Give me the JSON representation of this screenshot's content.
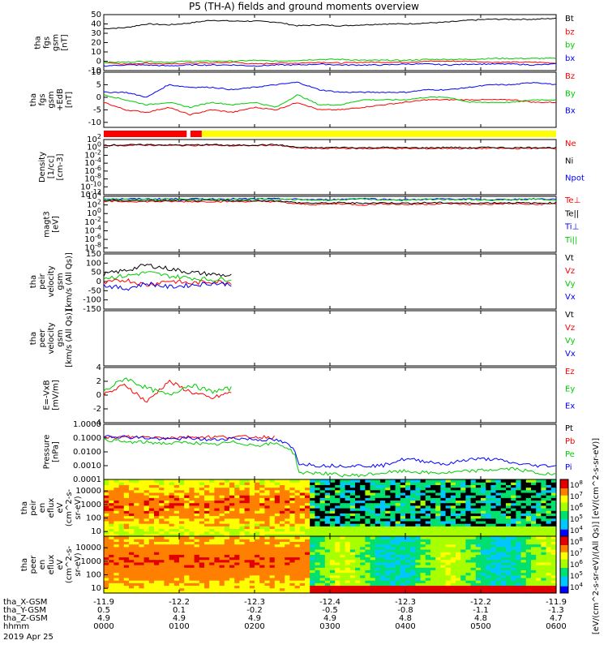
{
  "title": "P5 (TH-A) fields and ground moments overview",
  "date_label": "2019 Apr 25",
  "chart_data": [
    {
      "type": "line",
      "ylabel": [
        "tha",
        "fgs",
        "gsm",
        "[nT]"
      ],
      "yticks": [
        -10,
        0,
        10,
        20,
        30,
        40,
        50
      ],
      "ylim": [
        -10,
        50
      ],
      "series": [
        {
          "name": "Bt",
          "color": "#000000",
          "values": [
            35,
            36,
            40,
            39,
            41,
            44,
            43,
            43,
            42,
            38,
            39,
            38,
            39,
            40,
            40,
            41,
            42,
            44,
            45,
            45,
            45,
            46
          ]
        },
        {
          "name": "bz",
          "color": "#ff0000",
          "values": [
            -1,
            -3,
            -2,
            -3,
            -2,
            -2,
            -1,
            -3,
            -2,
            -2,
            -1,
            -2,
            -1,
            -1,
            -1,
            0,
            0,
            0,
            -1,
            -1,
            -1,
            -2
          ]
        },
        {
          "name": "by",
          "color": "#00cc00",
          "values": [
            -1,
            -1,
            0,
            -1,
            0,
            0,
            0,
            1,
            0,
            1,
            2,
            2,
            1,
            1,
            1,
            2,
            2,
            2,
            3,
            3,
            3,
            3
          ]
        },
        {
          "name": "bx",
          "color": "#0000ff",
          "values": [
            -5,
            -4,
            -4,
            -5,
            -4,
            -4,
            -4,
            -5,
            -4,
            -4,
            -3,
            -4,
            -4,
            -4,
            -3,
            -3,
            -4,
            -3,
            -3,
            -3,
            -4,
            -3
          ]
        }
      ]
    },
    {
      "type": "line",
      "ylabel": [
        "tha",
        "fgs",
        "gsm",
        "+EdB",
        "[nT]"
      ],
      "yticks": [
        -10,
        -5,
        0,
        5,
        10
      ],
      "ylim": [
        -12,
        10
      ],
      "series": [
        {
          "name": "Bz",
          "color": "#ff0000",
          "values": [
            -2,
            -5,
            -6,
            -4,
            -7,
            -5,
            -6,
            -4,
            -5,
            -2,
            -5,
            -5,
            -4,
            -3,
            -2,
            -1,
            -1,
            -1,
            -1,
            -1,
            -2,
            -2
          ]
        },
        {
          "name": "By",
          "color": "#00cc00",
          "values": [
            1,
            -1,
            -3,
            -2,
            -4,
            -2,
            -3,
            -2,
            -4,
            1,
            -3,
            -3,
            -1,
            -1,
            -1,
            0,
            0,
            -2,
            -2,
            -2,
            -1,
            -1
          ]
        },
        {
          "name": "Bx",
          "color": "#0000ff",
          "values": [
            2,
            2,
            0,
            5,
            4,
            4,
            3,
            4,
            5,
            6,
            3,
            2,
            2,
            2,
            2,
            3,
            3,
            4,
            5,
            5,
            6,
            5
          ]
        }
      ]
    },
    {
      "type": "bar",
      "status_bar": [
        {
          "from": 0.0,
          "to": 1.1,
          "color": "#ff0000"
        },
        {
          "from": 1.15,
          "to": 1.3,
          "color": "#ff0000"
        },
        {
          "from": 1.3,
          "to": 6.0,
          "color": "#ffff00"
        }
      ]
    },
    {
      "type": "line",
      "ylog": true,
      "ylabel": [
        "Density",
        "[1/cc]",
        "[cm-3]"
      ],
      "yticks": [
        "10^-12",
        "10^-10",
        "10^-8",
        "10^-6",
        "10^-4",
        "10^-2",
        "10^0",
        "10^2"
      ],
      "ylim": [
        -12,
        2
      ],
      "series": [
        {
          "name": "Ne",
          "color": "#ff0000",
          "values": [
            0.5,
            0.5,
            0.6,
            0.5,
            0.5,
            0.6,
            0.4,
            0.5,
            0.6,
            -0.2,
            -0.3,
            -0.2,
            -0.3,
            -0.2,
            -0.3,
            -0.3,
            -0.2,
            -0.3,
            -0.2,
            -0.3,
            -0.2,
            -0.3
          ]
        },
        {
          "name": "Ni",
          "color": "#000000",
          "values": [
            0.6,
            0.6,
            0.7,
            0.6,
            0.6,
            0.7,
            0.5,
            0.6,
            0.7,
            0.0,
            -0.1,
            0.0,
            -0.1,
            0.0,
            -0.1,
            -0.1,
            0.0,
            -0.1,
            0.0,
            -0.1,
            0.0,
            -0.1
          ]
        },
        {
          "name": "Npot",
          "color": "#0000ff",
          "values": []
        }
      ]
    },
    {
      "type": "line",
      "ylog": true,
      "ylabel": [
        "magt3",
        "[eV]"
      ],
      "yticks": [
        "10^-8",
        "10^-6",
        "10^-4",
        "10^-2",
        "10^0",
        "10^2",
        "10^4"
      ],
      "ylim": [
        -9,
        4
      ],
      "series": [
        {
          "name": "Te⊥",
          "color": "#ff0000",
          "values": [
            2.8,
            2.8,
            2.8,
            2.8,
            2.8,
            2.8,
            2.8,
            2.8,
            2.8,
            2.2,
            2.1,
            2.3,
            2.0,
            2.3,
            2.1,
            2.2,
            2.3,
            2.1,
            2.2,
            2.3,
            2.1,
            2.3
          ]
        },
        {
          "name": "Te||",
          "color": "#000000",
          "values": [
            3.0,
            3.0,
            3.0,
            3.0,
            3.0,
            3.0,
            3.0,
            3.0,
            3.0,
            2.5,
            2.4,
            2.5,
            2.4,
            2.5,
            2.4,
            2.5,
            2.5,
            2.4,
            2.5,
            2.5,
            2.4,
            2.5
          ]
        },
        {
          "name": "Ti⊥",
          "color": "#0000ff",
          "values": [
            3.4,
            3.4,
            3.4,
            3.4,
            3.4,
            3.4,
            3.4,
            3.4,
            3.4,
            3.3,
            3.2,
            3.3,
            3.5,
            3.3,
            3.2,
            3.3,
            3.4,
            3.3,
            3.2,
            3.3,
            3.4,
            3.3
          ]
        },
        {
          "name": "Ti||",
          "color": "#00cc00",
          "values": [
            3.3,
            3.3,
            3.3,
            3.3,
            3.3,
            3.3,
            3.3,
            3.3,
            3.3,
            3.2,
            3.1,
            3.2,
            3.4,
            3.2,
            3.1,
            3.2,
            3.3,
            3.2,
            3.1,
            3.2,
            3.3,
            3.2
          ]
        }
      ]
    },
    {
      "type": "line",
      "ylabel": [
        "tha",
        "peir",
        "velocity",
        "gsm",
        "[km/s (All Qs)]"
      ],
      "yticks": [
        -150,
        -100,
        -50,
        0,
        50,
        100,
        150
      ],
      "ylim": [
        -150,
        150
      ],
      "series": [
        {
          "name": "Vt",
          "color": "#000000",
          "values": [
            40,
            60,
            90,
            70,
            50,
            40,
            30,
            null,
            null,
            null,
            null,
            null,
            null,
            null,
            null,
            null,
            null,
            null,
            null,
            null,
            null,
            null
          ]
        },
        {
          "name": "Vz",
          "color": "#ff0000",
          "values": [
            -10,
            10,
            -20,
            5,
            -10,
            0,
            -5,
            null,
            null,
            null,
            null,
            null,
            null,
            null,
            null,
            null,
            null,
            null,
            null,
            null,
            null,
            null
          ]
        },
        {
          "name": "Vy",
          "color": "#00cc00",
          "values": [
            20,
            30,
            50,
            30,
            20,
            10,
            15,
            null,
            null,
            null,
            null,
            null,
            null,
            null,
            null,
            null,
            null,
            null,
            null,
            null,
            null,
            null
          ]
        },
        {
          "name": "Vx",
          "color": "#0000ff",
          "values": [
            -20,
            -40,
            -10,
            -30,
            -20,
            -10,
            -15,
            null,
            null,
            null,
            null,
            null,
            null,
            null,
            null,
            null,
            null,
            null,
            null,
            null,
            null,
            null
          ]
        }
      ]
    },
    {
      "type": "line",
      "ylabel": [
        "tha",
        "peer",
        "velocity",
        "gsm",
        "[km/s (All Qs)]"
      ],
      "yticks": [],
      "ylim": [
        -150,
        150
      ],
      "series": [
        {
          "name": "Vt",
          "color": "#000000",
          "values": []
        },
        {
          "name": "Vz",
          "color": "#ff0000",
          "values": []
        },
        {
          "name": "Vy",
          "color": "#00cc00",
          "values": []
        },
        {
          "name": "Vx",
          "color": "#0000ff",
          "values": []
        }
      ]
    },
    {
      "type": "line",
      "ylabel": [
        "E=-VxB",
        "[mV/m]"
      ],
      "yticks": [
        -4,
        -2,
        0,
        2,
        4
      ],
      "ylim": [
        -4,
        4
      ],
      "series": [
        {
          "name": "Ez",
          "color": "#ff0000",
          "values": [
            0,
            1.5,
            -1,
            2,
            0.5,
            -0.5,
            0.5,
            null,
            null,
            null,
            null,
            null,
            null,
            null,
            null,
            null,
            null,
            null,
            null,
            null,
            null,
            null
          ]
        },
        {
          "name": "Ey",
          "color": "#00cc00",
          "values": [
            0.5,
            2.5,
            1,
            0,
            1.5,
            0.5,
            1,
            null,
            null,
            null,
            null,
            null,
            null,
            null,
            null,
            null,
            null,
            null,
            null,
            null,
            null,
            null
          ]
        },
        {
          "name": "Ex",
          "color": "#0000ff",
          "values": []
        }
      ]
    },
    {
      "type": "line",
      "ylog": true,
      "ylabel": [
        "Pressure",
        "[nPa]"
      ],
      "yticks": [
        "0.0001",
        "0.0010",
        "0.0100",
        "0.1000",
        "1.0000"
      ],
      "ylim": [
        -4,
        0
      ],
      "series": [
        {
          "name": "Pt",
          "color": "#000000",
          "values": []
        },
        {
          "name": "Pb",
          "color": "#ff0000",
          "values": [
            0.1,
            0.12,
            0.12,
            0.11,
            0.12,
            0.12,
            0.12,
            0.12,
            0.12,
            null,
            null,
            null,
            null,
            null,
            null,
            null,
            null,
            null,
            null,
            null,
            null,
            null
          ]
        },
        {
          "name": "Pe",
          "color": "#00cc00",
          "values": [
            0.08,
            0.05,
            0.05,
            0.04,
            0.05,
            0.03,
            0.05,
            0.03,
            0.04,
            0.0003,
            0.0003,
            0.0002,
            0.0002,
            0.0003,
            0.0004,
            0.0003,
            0.0003,
            0.0004,
            0.0005,
            0.0006,
            0.0003,
            0.0002
          ]
        },
        {
          "name": "Pi",
          "color": "#0000ff",
          "values": [
            0.15,
            0.12,
            0.1,
            0.08,
            0.1,
            0.07,
            0.1,
            0.08,
            0.07,
            0.0015,
            0.001,
            0.001,
            0.001,
            0.001,
            0.003,
            0.002,
            0.0012,
            0.003,
            0.003,
            0.0015,
            0.001,
            0.001
          ]
        }
      ]
    },
    {
      "type": "heatmap",
      "ylabel": [
        "tha",
        "peir",
        "en",
        "eflux",
        "eV",
        "(cm^2-s-",
        "sr-eV)"
      ],
      "yticks": [
        "10",
        "100",
        "1000",
        "10000"
      ],
      "colorbar_ticks": [
        "10^4",
        "10^5",
        "10^6",
        "10^7",
        "10^8"
      ]
    },
    {
      "type": "heatmap",
      "ylabel": [
        "tha",
        "peer",
        "en",
        "eflux",
        "eV",
        "(cm^2-s-",
        "sr-eV)"
      ],
      "yticks": [
        "10",
        "100",
        "1000",
        "10000"
      ],
      "colorbar_ticks": [
        "10^4",
        "10^5",
        "10^6",
        "10^7",
        "10^8"
      ]
    }
  ],
  "colorbar_label": "[eV/(cm^2-s-sr-eV)/(All Qs)] [eV/(cm^2-s-sr-eV)]",
  "x_axis": {
    "row_labels": [
      "tha_X-GSM",
      "tha_Y-GSM",
      "tha_Z-GSM",
      "hhmm"
    ],
    "ticks": [
      {
        "x": "-11.9",
        "y": "0.5",
        "z": "4.9",
        "t": "0000"
      },
      {
        "x": "-12.2",
        "y": "0.1",
        "z": "4.9",
        "t": "0100"
      },
      {
        "x": "-12.3",
        "y": "-0.2",
        "z": "4.9",
        "t": "0200"
      },
      {
        "x": "-12.4",
        "y": "-0.5",
        "z": "4.9",
        "t": "0300"
      },
      {
        "x": "-12.3",
        "y": "-0.8",
        "z": "4.8",
        "t": "0400"
      },
      {
        "x": "-12.2",
        "y": "-1.1",
        "z": "4.8",
        "t": "0500"
      },
      {
        "x": "-11.9",
        "y": "-1.3",
        "z": "4.7",
        "t": "0600"
      }
    ]
  }
}
